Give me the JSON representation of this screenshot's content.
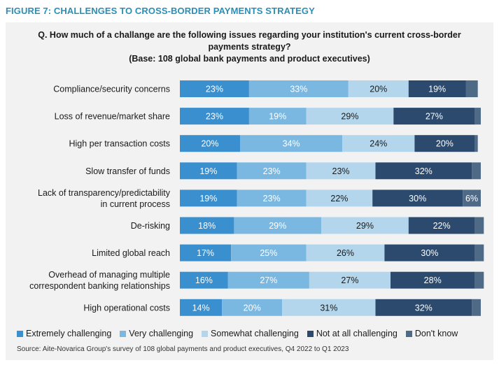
{
  "figure_title": "FIGURE 7: CHALLENGES TO CROSS-BORDER PAYMENTS STRATEGY",
  "question_lines": [
    "Q. How much of a challange are the following issues regarding your institution's current cross-border",
    "payments strategy?",
    "(Base: 108 global bank payments and product executives)"
  ],
  "source": "Source: Aite-Novarica Group's survey of 108 global payments and product executives, Q4 2022 to Q1 2023",
  "chart_data": {
    "type": "bar",
    "orientation": "horizontal",
    "stacked": true,
    "xlim": [
      0,
      100
    ],
    "grid": false,
    "legend_position": "bottom",
    "categories": [
      [
        "Compliance/security concerns"
      ],
      [
        "Loss of revenue/market share"
      ],
      [
        "High per transaction costs"
      ],
      [
        "Slow transfer of funds"
      ],
      [
        "Lack of transparency/predictability",
        "in current process"
      ],
      [
        "De-risking"
      ],
      [
        "Limited global reach"
      ],
      [
        "Overhead of managing multiple",
        "correspondent banking relationships"
      ],
      [
        "High operational costs"
      ]
    ],
    "series": [
      {
        "name": "Extremely challenging",
        "color": "#3a8fcf",
        "label_color": "#ffffff",
        "values": [
          23,
          23,
          20,
          19,
          19,
          18,
          17,
          16,
          14
        ]
      },
      {
        "name": "Very challenging",
        "color": "#7ab8e2",
        "label_color": "#ffffff",
        "values": [
          33,
          19,
          34,
          23,
          23,
          29,
          25,
          27,
          20
        ]
      },
      {
        "name": "Somewhat challenging",
        "color": "#b3d6ec",
        "label_color": "#1a1a1a",
        "values": [
          20,
          29,
          24,
          23,
          22,
          29,
          26,
          27,
          31
        ]
      },
      {
        "name": "Not at all challenging",
        "color": "#2b4a6e",
        "label_color": "#ffffff",
        "values": [
          19,
          27,
          20,
          32,
          30,
          22,
          30,
          28,
          32
        ]
      },
      {
        "name": "Don't know",
        "color": "#4f6a87",
        "label_color": "#ffffff",
        "values": [
          4,
          2,
          1,
          3,
          6,
          3,
          3,
          3,
          3
        ]
      }
    ],
    "data_labels": [
      [
        "23%",
        "33%",
        "20%",
        "19%",
        ""
      ],
      [
        "23%",
        "19%",
        "29%",
        "27%",
        ""
      ],
      [
        "20%",
        "34%",
        "24%",
        "20%",
        ""
      ],
      [
        "19%",
        "23%",
        "23%",
        "32%",
        ""
      ],
      [
        "19%",
        "23%",
        "22%",
        "30%",
        "6%"
      ],
      [
        "18%",
        "29%",
        "29%",
        "22%",
        ""
      ],
      [
        "17%",
        "25%",
        "26%",
        "30%",
        ""
      ],
      [
        "16%",
        "27%",
        "27%",
        "28%",
        ""
      ],
      [
        "14%",
        "20%",
        "31%",
        "32%",
        ""
      ]
    ]
  }
}
